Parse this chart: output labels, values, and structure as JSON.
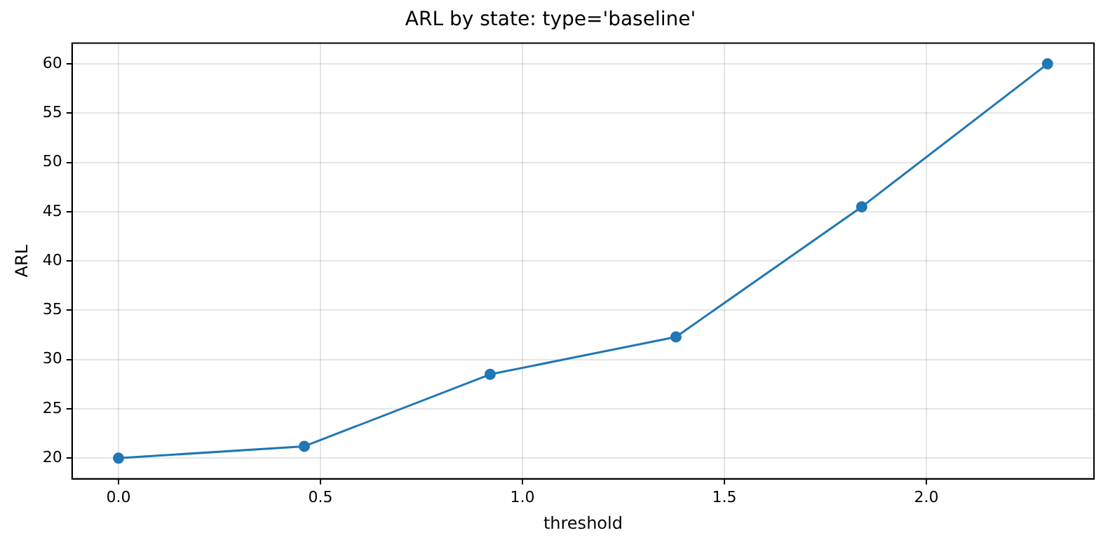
{
  "chart_data": {
    "type": "line",
    "title": "ARL by state: type='baseline'",
    "xlabel": "threshold",
    "ylabel": "ARL",
    "x": [
      0,
      0.46,
      0.92,
      1.38,
      1.84,
      2.3
    ],
    "series": [
      {
        "color": "#1f77b4",
        "values": [
          20.0,
          21.2,
          28.5,
          32.3,
          45.5,
          60.0
        ]
      }
    ],
    "xlim": [
      -0.115,
      2.415
    ],
    "xticks": [
      {
        "value": 0,
        "label": "0.0"
      },
      {
        "value": 0.5,
        "label": "0.5"
      },
      {
        "value": 1,
        "label": "1.0"
      },
      {
        "value": 1.5,
        "label": "1.5"
      },
      {
        "value": 2,
        "label": "2.0"
      }
    ],
    "ylim": [
      17.9,
      62.1
    ],
    "yticks": [
      20,
      25,
      30,
      35,
      40,
      45,
      50,
      55,
      60
    ],
    "grid": true,
    "marker": "circle",
    "line_style": "solid",
    "legend": false
  }
}
